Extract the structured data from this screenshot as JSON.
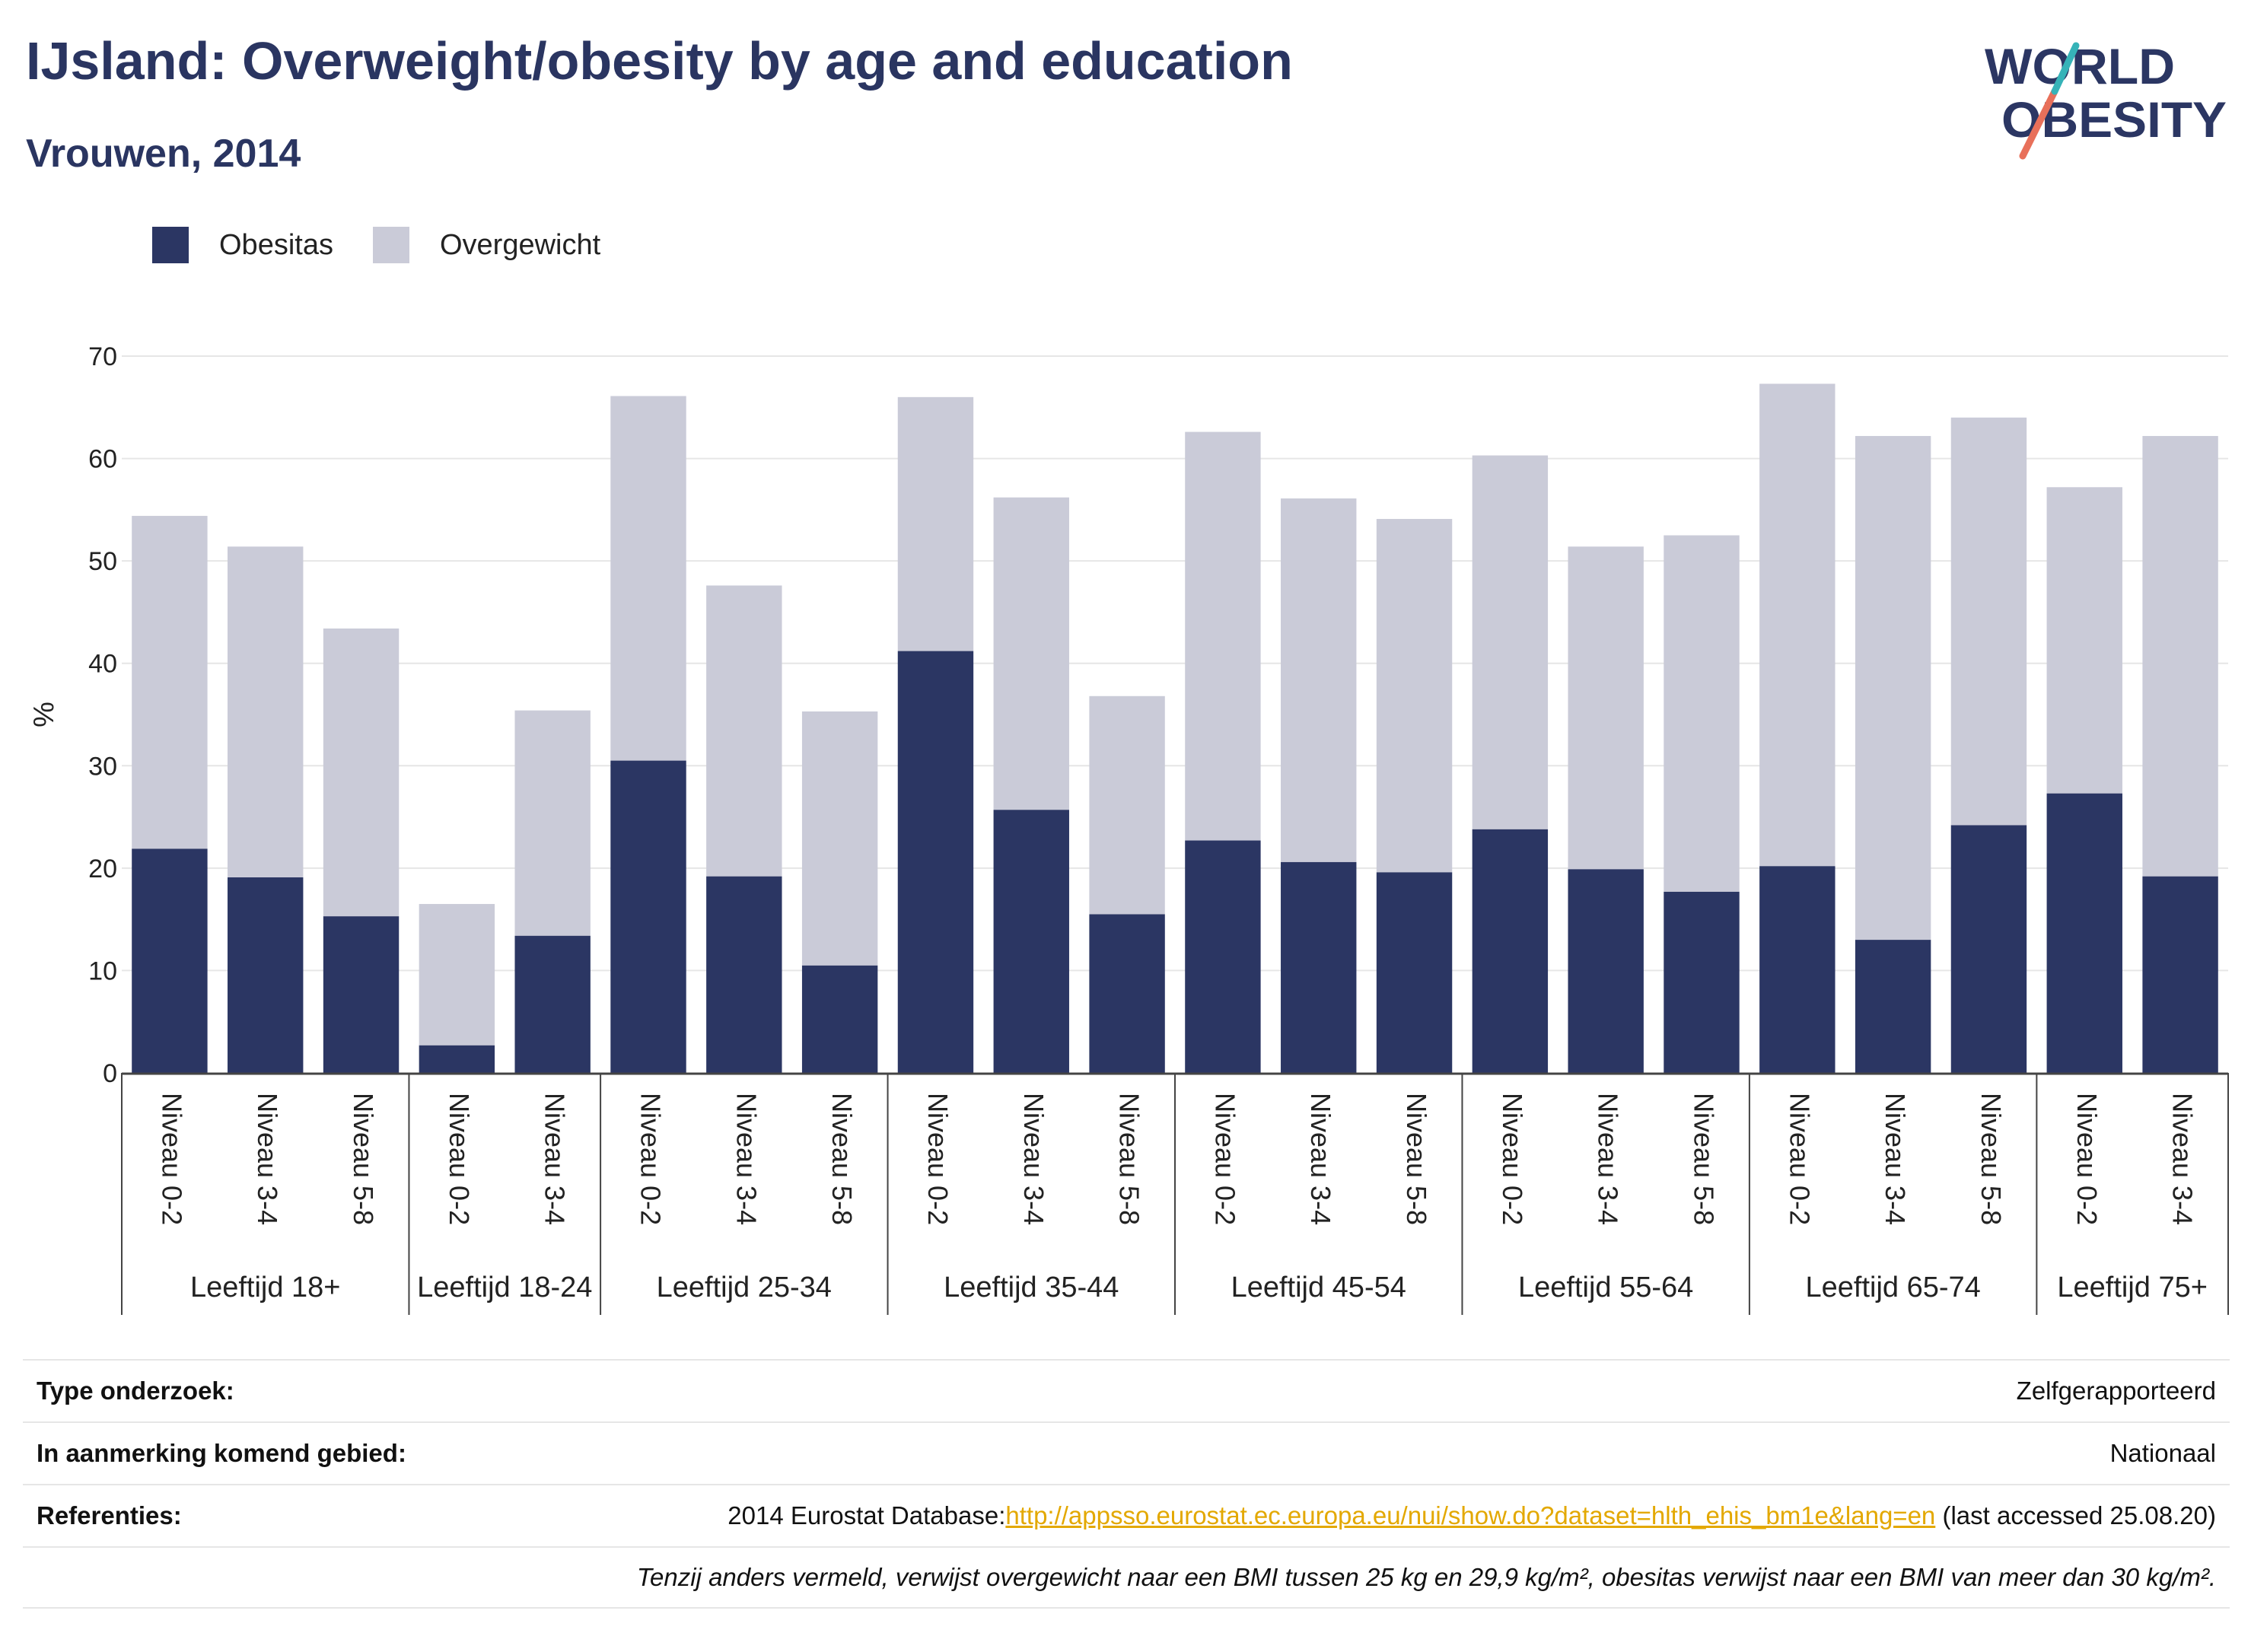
{
  "header": {
    "title": "IJsland: Overweight/obesity by age and education",
    "subtitle": "Vrouwen, 2014"
  },
  "logo": {
    "line1": "WORLD",
    "line2": "OBESITY"
  },
  "legend": [
    {
      "label": "Obesitas",
      "color": "#2b3663"
    },
    {
      "label": "Overgewicht",
      "color": "#cacbd8"
    }
  ],
  "chart_data": {
    "type": "bar",
    "stacked": true,
    "ylabel": "%",
    "ylim": [
      0,
      70
    ],
    "yticks": [
      0,
      10,
      20,
      30,
      40,
      50,
      60,
      70
    ],
    "grid": true,
    "groups": [
      {
        "label": "Leeftijd 18+",
        "categories": [
          "Niveau 0-2",
          "Niveau 3-4",
          "Niveau 5-8"
        ]
      },
      {
        "label": "Leeftijd 18-24",
        "categories": [
          "Niveau 0-2",
          "Niveau 3-4"
        ]
      },
      {
        "label": "Leeftijd 25-34",
        "categories": [
          "Niveau 0-2",
          "Niveau 3-4",
          "Niveau 5-8"
        ]
      },
      {
        "label": "Leeftijd 35-44",
        "categories": [
          "Niveau 0-2",
          "Niveau 3-4",
          "Niveau 5-8"
        ]
      },
      {
        "label": "Leeftijd 45-54",
        "categories": [
          "Niveau 0-2",
          "Niveau 3-4",
          "Niveau 5-8"
        ]
      },
      {
        "label": "Leeftijd 55-64",
        "categories": [
          "Niveau 0-2",
          "Niveau 3-4",
          "Niveau 5-8"
        ]
      },
      {
        "label": "Leeftijd 65-74",
        "categories": [
          "Niveau 0-2",
          "Niveau 3-4",
          "Niveau 5-8"
        ]
      },
      {
        "label": "Leeftijd 75+",
        "categories": [
          "Niveau 0-2",
          "Niveau 3-4"
        ]
      }
    ],
    "series": [
      {
        "name": "Obesitas",
        "color": "#2b3663",
        "values": [
          21.9,
          19.1,
          15.3,
          2.7,
          13.4,
          30.5,
          19.2,
          10.5,
          41.2,
          25.7,
          15.5,
          22.7,
          20.6,
          19.6,
          23.8,
          19.9,
          17.7,
          20.2,
          13.0,
          24.2,
          27.3,
          19.2
        ]
      },
      {
        "name": "Overgewicht",
        "color": "#cacbd8",
        "values": [
          32.5,
          32.3,
          28.1,
          13.8,
          22.0,
          35.6,
          28.4,
          24.8,
          24.8,
          30.5,
          21.3,
          39.9,
          35.5,
          34.5,
          36.5,
          31.5,
          34.8,
          47.1,
          49.2,
          39.8,
          29.9,
          43.0
        ]
      }
    ]
  },
  "info": {
    "survey_label": "Type onderzoek:",
    "survey_value": "Zelfgerapporteerd",
    "area_label": "In aanmerking komend gebied:",
    "area_value": "Nationaal",
    "ref_label": "Referenties:",
    "ref_prefix": "2014 Eurostat Database:",
    "ref_link": "http://appsso.eurostat.ec.europa.eu/nui/show.do?dataset=hlth_ehis_bm1e&lang=en",
    "ref_suffix": " (last accessed 25.08.20)",
    "note": "Tenzij anders vermeld, verwijst overgewicht naar een BMI tussen 25 kg en 29,9 kg/m², obesitas verwijst naar een BMI van meer dan 30 kg/m²."
  }
}
